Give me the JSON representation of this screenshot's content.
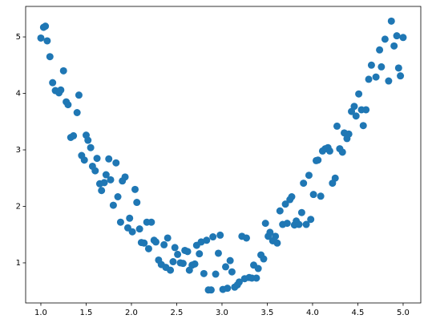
{
  "chart_data": {
    "type": "scatter",
    "color": "#1f77b4",
    "x": [
      1.0,
      1.03,
      1.05,
      1.07,
      1.1,
      1.13,
      1.16,
      1.2,
      1.22,
      1.25,
      1.28,
      1.3,
      1.33,
      1.36,
      1.4,
      1.42,
      1.45,
      1.48,
      1.5,
      1.52,
      1.55,
      1.57,
      1.6,
      1.62,
      1.65,
      1.67,
      1.7,
      1.72,
      1.75,
      1.77,
      1.8,
      1.83,
      1.85,
      1.88,
      1.9,
      1.93,
      1.96,
      1.98,
      2.01,
      2.04,
      2.06,
      2.09,
      2.11,
      2.14,
      2.17,
      2.19,
      2.22,
      2.25,
      2.27,
      2.3,
      2.33,
      2.36,
      2.38,
      2.4,
      2.43,
      2.46,
      2.48,
      2.51,
      2.54,
      2.57,
      2.59,
      2.62,
      2.64,
      2.67,
      2.7,
      2.72,
      2.75,
      2.77,
      2.8,
      2.83,
      2.85,
      2.88,
      2.9,
      2.93,
      2.96,
      2.98,
      3.01,
      3.04,
      3.06,
      3.09,
      3.11,
      3.14,
      3.17,
      3.19,
      3.22,
      3.25,
      3.27,
      3.3,
      3.33,
      3.35,
      3.38,
      3.4,
      3.43,
      3.46,
      3.48,
      3.51,
      3.53,
      3.56,
      3.59,
      3.61,
      3.64,
      3.67,
      3.7,
      3.72,
      3.75,
      3.77,
      3.8,
      3.82,
      3.85,
      3.88,
      3.9,
      3.93,
      3.96,
      3.98,
      4.01,
      4.04,
      4.06,
      4.09,
      4.11,
      4.14,
      4.17,
      4.19,
      4.22,
      4.25,
      4.27,
      4.3,
      4.33,
      4.35,
      4.38,
      4.4,
      4.43,
      4.46,
      4.48,
      4.51,
      4.54,
      4.56,
      4.59,
      4.62,
      4.65,
      4.7,
      4.74,
      4.76,
      4.8,
      4.84,
      4.87,
      4.9,
      4.93,
      4.95,
      4.97,
      5.0
    ],
    "values": [
      4.98,
      5.17,
      5.19,
      4.93,
      4.65,
      4.19,
      4.05,
      4.01,
      4.06,
      4.4,
      3.85,
      3.8,
      3.22,
      3.25,
      3.66,
      3.97,
      2.9,
      2.82,
      3.26,
      3.17,
      3.04,
      2.71,
      2.63,
      2.85,
      2.4,
      2.28,
      2.42,
      2.56,
      2.84,
      2.47,
      2.02,
      2.77,
      2.17,
      1.72,
      2.45,
      2.52,
      1.62,
      1.79,
      1.55,
      2.3,
      2.07,
      1.6,
      1.36,
      1.35,
      1.72,
      1.25,
      1.72,
      1.4,
      1.37,
      1.05,
      0.97,
      1.32,
      0.92,
      1.44,
      0.87,
      1.02,
      1.27,
      1.15,
      1.0,
      0.99,
      1.22,
      1.2,
      0.87,
      0.96,
      0.98,
      1.31,
      1.16,
      1.37,
      0.81,
      1.4,
      0.52,
      0.52,
      1.46,
      0.8,
      1.17,
      1.49,
      0.53,
      0.93,
      0.55,
      1.04,
      0.84,
      0.57,
      0.61,
      0.66,
      1.47,
      0.72,
      1.44,
      0.74,
      0.73,
      0.96,
      0.73,
      0.9,
      1.14,
      1.07,
      1.7,
      1.47,
      1.54,
      1.39,
      1.47,
      1.35,
      1.92,
      1.68,
      2.04,
      1.7,
      2.12,
      2.17,
      1.67,
      1.74,
      1.68,
      1.89,
      2.41,
      1.68,
      2.55,
      1.77,
      2.21,
      2.81,
      2.82,
      2.18,
      2.98,
      3.02,
      3.04,
      2.98,
      2.41,
      2.5,
      3.42,
      3.02,
      2.96,
      3.3,
      3.2,
      3.28,
      3.68,
      3.77,
      3.6,
      3.99,
      3.71,
      3.43,
      3.71,
      4.25,
      4.5,
      4.29,
      4.77,
      4.47,
      4.96,
      4.22,
      5.28,
      4.84,
      5.02,
      4.45,
      4.31,
      4.99
    ],
    "xlim": [
      0.832,
      5.195
    ],
    "ylim": [
      0.29,
      5.54
    ],
    "xticks": [
      {
        "value": 1,
        "label": "1.0"
      },
      1.5,
      {
        "value": 2,
        "label": "2.0"
      },
      2.5,
      {
        "value": 3,
        "label": "3.0"
      },
      3.5,
      {
        "value": 4,
        "label": "4.0"
      },
      4.5,
      {
        "value": 5,
        "label": "5.0"
      }
    ],
    "yticks": [
      1,
      2,
      3,
      4,
      5
    ]
  }
}
